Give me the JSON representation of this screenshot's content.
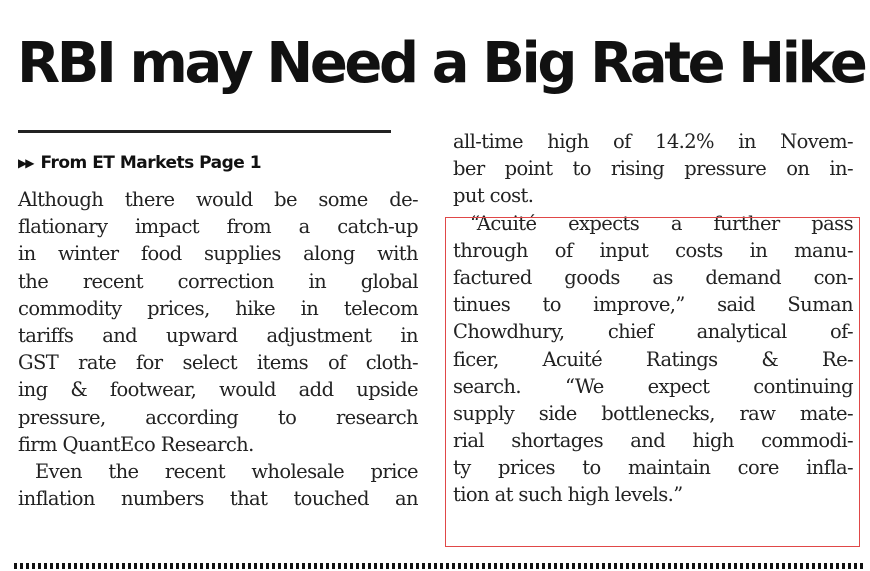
{
  "headline": "RBI may Need a Big Rate Hike",
  "kicker": {
    "arrows": "▶▶",
    "text": "From ET Markets Page 1"
  },
  "col1": [
    "Although there would be some de-",
    "flationary impact from a catch-up",
    "in winter food supplies along with",
    "the recent correction in global",
    "commodity prices, hike in telecom",
    "tariffs and upward adjustment in",
    "GST rate for select items of cloth-",
    "ing & footwear, would add upside",
    "pressure, according to research",
    "firm QuantEco Research.",
    "Even the recent wholesale price",
    "inflation numbers that touched an"
  ],
  "col2": [
    "all-time high of 14.2% in Novem-",
    "ber point to rising pressure on in-",
    "put cost.",
    "“Acuité expects a further pass",
    "through of input costs in manu-",
    "factured goods as demand con-",
    "tinues to improve,” said Suman",
    "Chowdhury, chief analytical of-",
    "ficer, Acuité Ratings & Re-",
    "search. “We expect continuing",
    "supply side bottlenecks, raw mate-",
    "rial shortages and high commodi-",
    "ty prices to maintain core infla-",
    "tion at such high levels.”"
  ]
}
